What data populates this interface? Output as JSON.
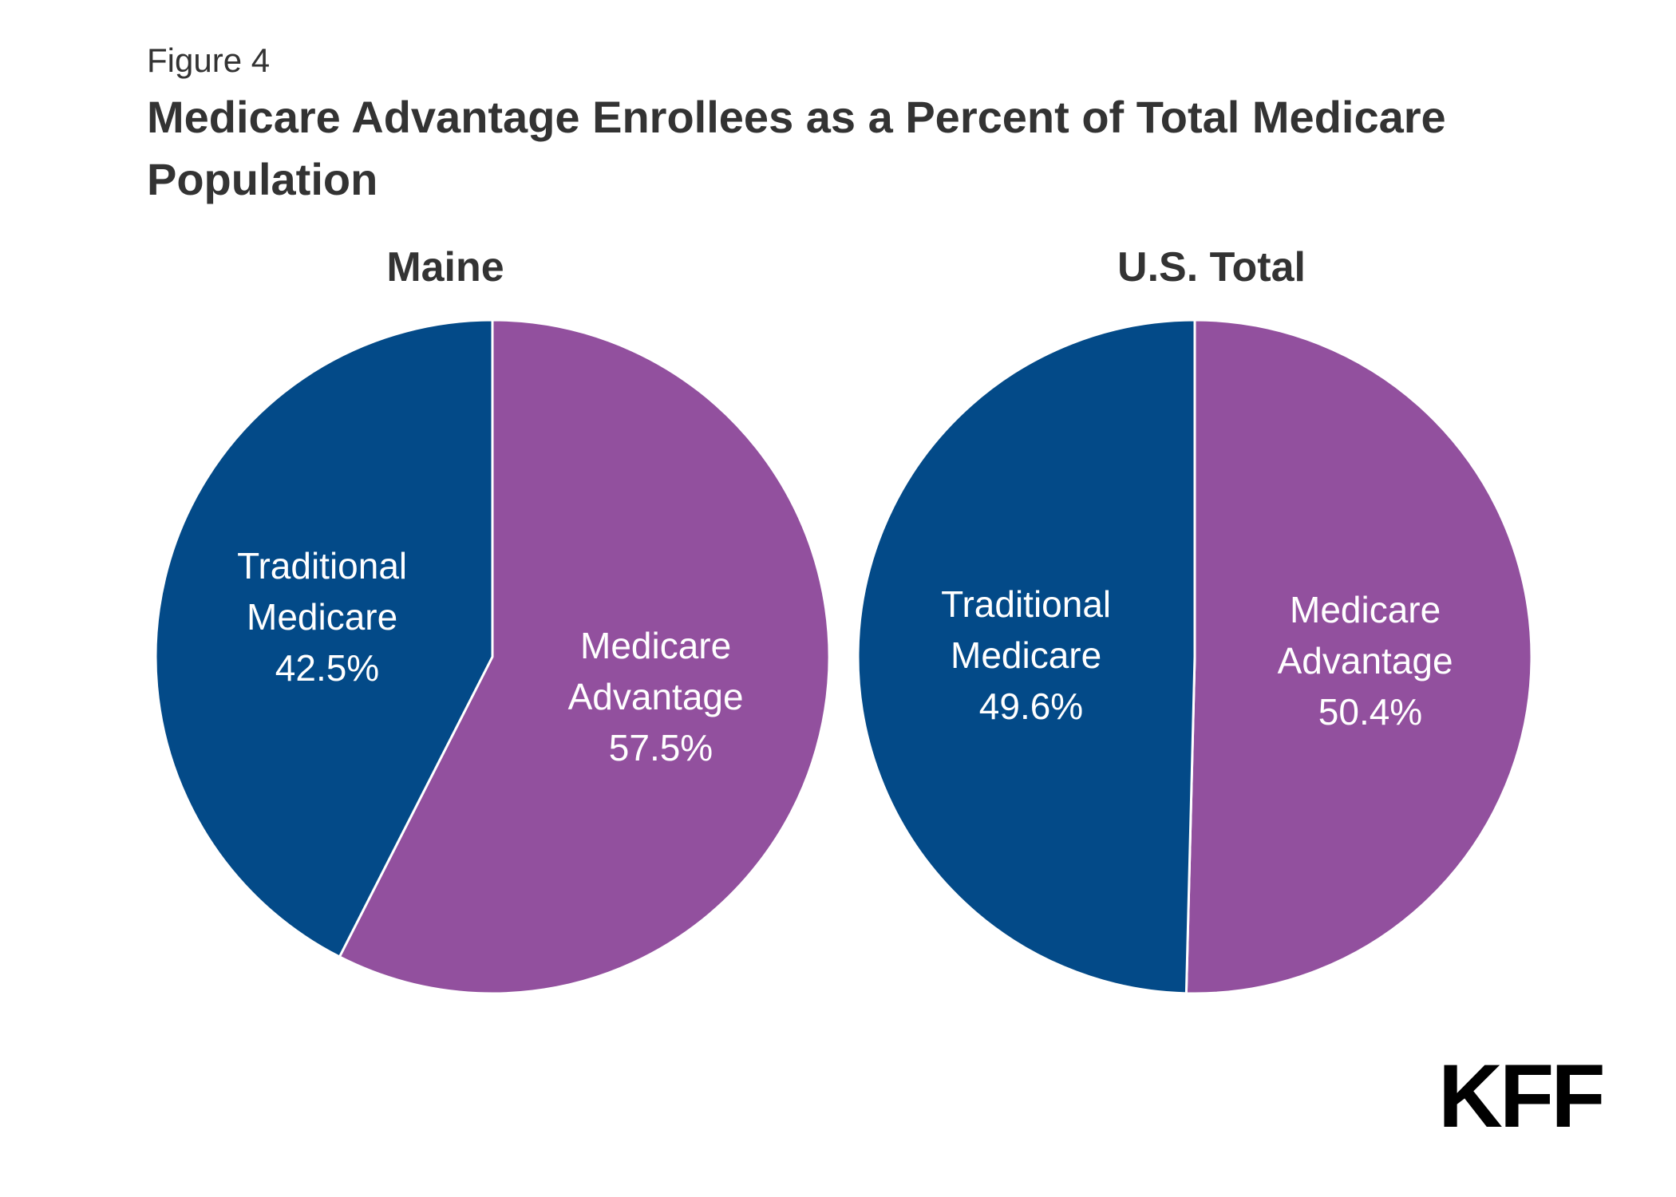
{
  "figure_label": "Figure 4",
  "title": "Medicare Advantage Enrollees as a Percent of Total Medicare Population",
  "logo_text": "KFF",
  "colors": {
    "traditional": "#034A88",
    "advantage": "#92509E",
    "separator": "#ffffff"
  },
  "chart_data": [
    {
      "type": "pie",
      "title": "Maine",
      "slices": [
        {
          "label_lines": [
            "Traditional",
            "Medicare"
          ],
          "value": 42.5,
          "value_label": "42.5%",
          "color": "#034A88"
        },
        {
          "label_lines": [
            "Medicare",
            "Advantage"
          ],
          "value": 57.5,
          "value_label": "57.5%",
          "color": "#92509E"
        }
      ]
    },
    {
      "type": "pie",
      "title": "U.S. Total",
      "slices": [
        {
          "label_lines": [
            "Traditional",
            "Medicare"
          ],
          "value": 49.6,
          "value_label": "49.6%",
          "color": "#034A88"
        },
        {
          "label_lines": [
            "Medicare",
            "Advantage"
          ],
          "value": 50.4,
          "value_label": "50.4%",
          "color": "#92509E"
        }
      ]
    }
  ]
}
